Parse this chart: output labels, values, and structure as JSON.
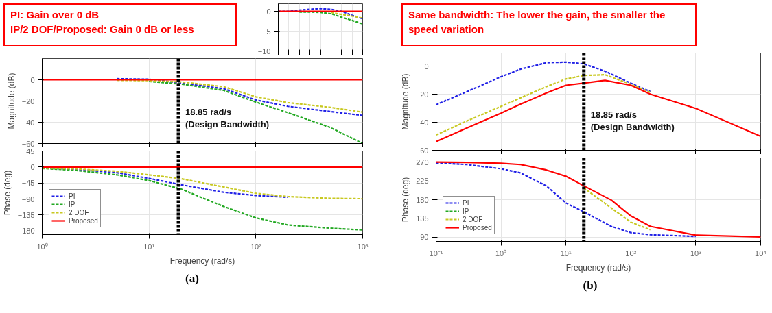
{
  "chart_data": [
    {
      "type": "line",
      "ylabel": "Magnitude (dB)",
      "log": "x",
      "xlim": [
        1,
        1000
      ],
      "xticks": [
        1,
        10,
        100,
        1000
      ],
      "ylim": [
        -60,
        20
      ],
      "yticks": [
        -60,
        -40,
        -20,
        0
      ],
      "grid": true,
      "tick_labels": "y",
      "annotations": [
        "PI:  Gain over 0 dB\nIP/2 DOF/Proposed: Gain 0 dB or less"
      ],
      "ref_lines": [
        {
          "axis": "x",
          "value": 18.85,
          "label": "18.85 rad/s\n(Design Bandwidth)",
          "color": "#000000",
          "line_style": "dashed"
        }
      ],
      "x": [
        1,
        2,
        5,
        10,
        20,
        50,
        100,
        200,
        500,
        1000
      ],
      "series": [
        {
          "color": "#1f1fe6",
          "line_style": "dashed",
          "values": [
            null,
            null,
            1,
            0.5,
            -3,
            -8.4,
            -19,
            -25,
            -30,
            -33.6
          ]
        },
        {
          "color": "#22a822",
          "line_style": "dashed",
          "values": [
            null,
            null,
            null,
            -1.5,
            -4,
            -10,
            -21,
            -31,
            -45,
            -60
          ]
        },
        {
          "color": "#c8c820",
          "line_style": "dashed",
          "values": [
            null,
            null,
            -0.5,
            -0.8,
            -2,
            -6.5,
            -16,
            -21.5,
            -26,
            -30.5
          ]
        },
        {
          "color": "#ff0000",
          "line_style": "solid",
          "values": [
            0,
            0,
            0,
            0,
            0,
            0,
            0,
            0,
            0,
            0
          ]
        }
      ]
    },
    {
      "type": "line",
      "categories": [
        null,
        null,
        null,
        null,
        null,
        null,
        null,
        null,
        null
      ],
      "ylim": [
        -10,
        1.9
      ],
      "yticks": [
        -10,
        -5,
        0
      ],
      "grid": true,
      "tick_labels": "y",
      "series": [
        {
          "color": "#1f1fe6",
          "line_style": "dashed",
          "values": [
            0,
            0,
            0.3,
            0.5,
            0.7,
            0.5,
            0,
            -1,
            -1.9
          ]
        },
        {
          "color": "#c8c820",
          "line_style": "dashed",
          "values": [
            null,
            null,
            null,
            null,
            null,
            -0.3,
            -0.8,
            -1.2,
            -1.7
          ]
        },
        {
          "color": "#22a822",
          "line_style": "dashed",
          "values": [
            null,
            null,
            -0.2,
            -0.2,
            -0.3,
            -0.6,
            -1.5,
            -2.3,
            -3.2
          ]
        },
        {
          "color": "#ff0000",
          "line_style": "solid",
          "values": [
            0,
            0,
            0,
            0,
            0,
            0,
            0,
            0,
            0
          ]
        }
      ]
    },
    {
      "type": "line",
      "xlabel": "Frequency (rad/s)",
      "ylabel": "Phase (deg)",
      "log": "x",
      "xlim": [
        1,
        1000
      ],
      "xticks": [
        {
          "value": 1,
          "label": "10⁰"
        },
        {
          "value": 10,
          "label": "10¹"
        },
        {
          "value": 100,
          "label": "10²"
        },
        {
          "value": 1000,
          "label": "10³"
        }
      ],
      "ylim": [
        -190,
        45
      ],
      "yticks": [
        -180,
        -135,
        -90,
        -45,
        0,
        45
      ],
      "grid": true,
      "legend": "bottom left",
      "annotations": [
        "(a)"
      ],
      "ref_lines": [
        {
          "axis": "x",
          "value": 18.85,
          "label": null,
          "color": "#000000",
          "line_style": "dashed"
        }
      ],
      "x": [
        1,
        2,
        5,
        10,
        20,
        50,
        100,
        200,
        500,
        1000
      ],
      "series": [
        {
          "name": "PI",
          "color": "#1f1fe6",
          "line_style": "dashed",
          "values": [
            -3,
            -6,
            -16,
            -32,
            -50,
            -71,
            -80,
            -85,
            null,
            null
          ]
        },
        {
          "name": "IP",
          "color": "#22a822",
          "line_style": "dashed",
          "values": [
            -4,
            -9,
            -22,
            -38,
            -62,
            -111,
            -143,
            -163,
            -172,
            -177
          ]
        },
        {
          "name": "2 DOF",
          "color": "#c8c820",
          "line_style": "dashed",
          "values": [
            -3,
            -5,
            -12,
            -22,
            -33,
            -56,
            -74,
            -83,
            -88,
            -89
          ]
        },
        {
          "name": "Proposed",
          "color": "#ff0000",
          "line_style": "solid",
          "values": [
            0,
            0,
            0,
            0,
            0,
            0,
            0,
            0,
            0,
            0
          ]
        }
      ]
    },
    {
      "type": "line",
      "ylabel": "Magnitude (dB)",
      "log": "x",
      "xlim": [
        0.1,
        10000
      ],
      "xticks": [
        0.1,
        1,
        10,
        100,
        1000,
        10000
      ],
      "ylim": [
        -60,
        9.5
      ],
      "yticks": [
        -60,
        -40,
        -20,
        0
      ],
      "grid": true,
      "tick_labels": "y",
      "annotations": [
        "Same bandwidth: The lower the gain, the smaller the speed variation"
      ],
      "ref_lines": [
        {
          "axis": "x",
          "value": 18.85,
          "label": "18.85 rad/s\n(Design Bandwidth)",
          "color": "#000000",
          "line_style": "dashed"
        }
      ],
      "x": [
        0.1,
        0.3,
        1,
        2,
        5,
        10,
        18.85,
        40,
        100,
        200,
        1000,
        10000
      ],
      "series": [
        {
          "color": "#1f1fe6",
          "line_style": "dashed",
          "values": [
            -27.4,
            -18,
            -7.4,
            -2,
            2.6,
            3,
            1.8,
            -3.5,
            -12,
            -18,
            null,
            null
          ]
        },
        {
          "color": "#22a822",
          "line_style": "dashed",
          "values": [
            null,
            null,
            null,
            null,
            null,
            null,
            null,
            null,
            null,
            null,
            null,
            null
          ]
        },
        {
          "color": "#c8c820",
          "line_style": "dashed",
          "values": [
            -49,
            -39,
            -28.6,
            -22.5,
            -14.5,
            -9,
            -6.5,
            -6,
            -12.8,
            -18.5,
            null,
            null
          ]
        },
        {
          "color": "#ff0000",
          "line_style": "solid",
          "values": [
            -53.8,
            -44,
            -33.5,
            -27,
            -19,
            -13.5,
            -12,
            -10,
            -13.5,
            -19.9,
            -30,
            -50
          ]
        }
      ]
    },
    {
      "type": "line",
      "xlabel": "Frequency (rad/s)",
      "ylabel": "Phase (deg)",
      "log": "x",
      "xlim": [
        0.1,
        10000
      ],
      "xticks": [
        {
          "value": 0.1,
          "label": "10⁻¹"
        },
        {
          "value": 1,
          "label": "10⁰"
        },
        {
          "value": 10,
          "label": "10¹"
        },
        {
          "value": 100,
          "label": "10²"
        },
        {
          "value": 1000,
          "label": "10³"
        },
        {
          "value": 10000,
          "label": "10⁴"
        }
      ],
      "ylim": [
        80,
        280
      ],
      "yticks": [
        90,
        135,
        180,
        225,
        270
      ],
      "grid": true,
      "legend": "bottom left",
      "annotations": [
        "(b)"
      ],
      "ref_lines": [
        {
          "axis": "x",
          "value": 18.85,
          "label": null,
          "color": "#000000",
          "line_style": "dashed"
        }
      ],
      "x": [
        0.1,
        0.3,
        1,
        2,
        5,
        10,
        18.85,
        50,
        100,
        200,
        1000,
        10000
      ],
      "series": [
        {
          "name": "PI",
          "color": "#1f1fe6",
          "line_style": "dashed",
          "values": [
            268,
            264,
            254,
            244,
            213,
            172,
            151,
            116,
            101,
            96,
            92,
            null
          ]
        },
        {
          "name": "IP",
          "color": "#22a822",
          "line_style": "dashed",
          "values": [
            null,
            null,
            null,
            null,
            null,
            null,
            null,
            null,
            null,
            null,
            null,
            null
          ]
        },
        {
          "name": "2 DOF",
          "color": "#c8c820",
          "line_style": "dashed",
          "values": [
            null,
            null,
            null,
            null,
            null,
            null,
            208,
            160,
            126,
            108,
            null,
            null
          ]
        },
        {
          "name": "Proposed",
          "color": "#ff0000",
          "line_style": "solid",
          "values": [
            270,
            269,
            267,
            264,
            251,
            236,
            213,
            179,
            141,
            116,
            95,
            91
          ]
        }
      ]
    }
  ]
}
